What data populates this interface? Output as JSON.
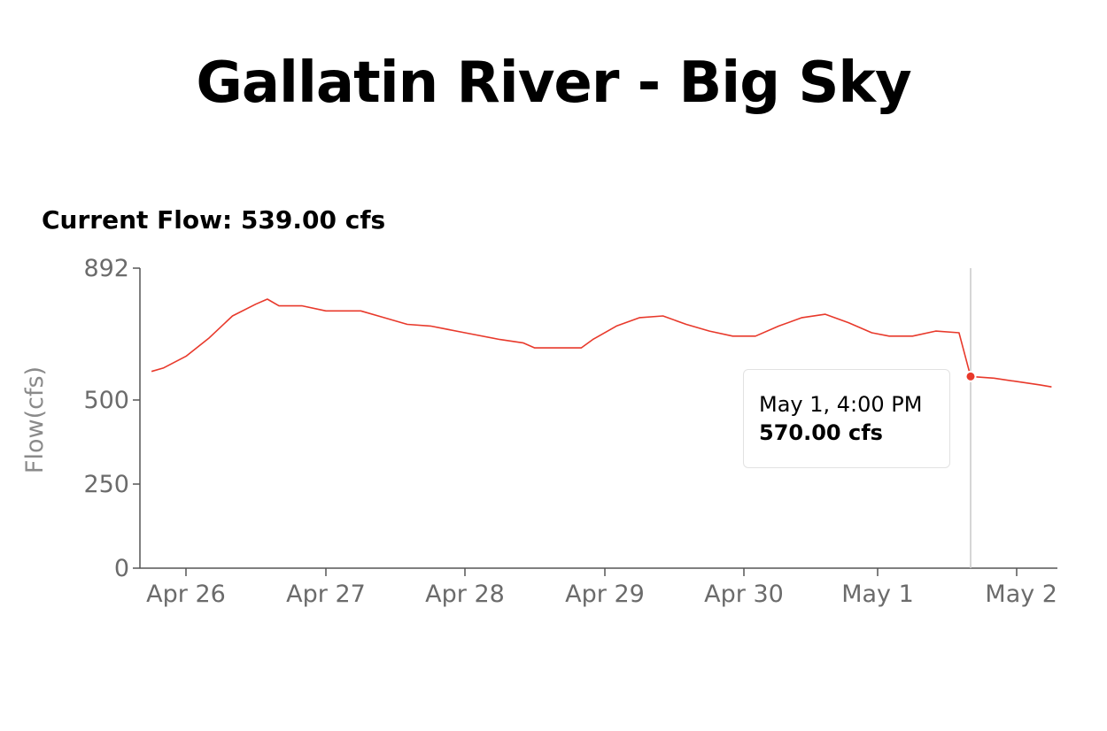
{
  "page": {
    "title": "Gallatin River - Big Sky",
    "current_flow": "Current Flow: 539.00 cfs"
  },
  "tooltip": {
    "time": "May 1, 4:00 PM",
    "value": "570.00 cfs"
  },
  "colors": {
    "line": "#e8392b",
    "axis": "#555555",
    "hover_line": "#c8c8c8"
  },
  "chart_data": {
    "type": "line",
    "title": "",
    "xlabel": "",
    "ylabel": "Flow(cfs)",
    "ylim": [
      0,
      892
    ],
    "yticks": [
      0,
      250,
      500,
      892
    ],
    "xticks": [
      "Apr 26",
      "Apr 27",
      "Apr 28",
      "Apr 29",
      "Apr 30",
      "May 1",
      "May 2"
    ],
    "grid": false,
    "hover": {
      "x": "May 1, 4:00 PM",
      "y": 570
    },
    "series": [
      {
        "values": [
          {
            "x": "Apr 25, 18:00",
            "y": 585
          },
          {
            "x": "Apr 25, 20:00",
            "y": 595
          },
          {
            "x": "Apr 26, 00:00",
            "y": 630
          },
          {
            "x": "Apr 26, 04:00",
            "y": 685
          },
          {
            "x": "Apr 26, 08:00",
            "y": 750
          },
          {
            "x": "Apr 26, 12:00",
            "y": 785
          },
          {
            "x": "Apr 26, 14:00",
            "y": 800
          },
          {
            "x": "Apr 26, 16:00",
            "y": 780
          },
          {
            "x": "Apr 26, 20:00",
            "y": 780
          },
          {
            "x": "Apr 27, 00:00",
            "y": 765
          },
          {
            "x": "Apr 27, 06:00",
            "y": 765
          },
          {
            "x": "Apr 27, 10:00",
            "y": 745
          },
          {
            "x": "Apr 27, 14:00",
            "y": 725
          },
          {
            "x": "Apr 27, 18:00",
            "y": 720
          },
          {
            "x": "Apr 28, 00:00",
            "y": 700
          },
          {
            "x": "Apr 28, 06:00",
            "y": 680
          },
          {
            "x": "Apr 28, 10:00",
            "y": 670
          },
          {
            "x": "Apr 28, 12:00",
            "y": 655
          },
          {
            "x": "Apr 28, 20:00",
            "y": 655
          },
          {
            "x": "Apr 28, 22:00",
            "y": 680
          },
          {
            "x": "Apr 29, 02:00",
            "y": 720
          },
          {
            "x": "Apr 29, 06:00",
            "y": 745
          },
          {
            "x": "Apr 29, 10:00",
            "y": 750
          },
          {
            "x": "Apr 29, 14:00",
            "y": 725
          },
          {
            "x": "Apr 29, 18:00",
            "y": 705
          },
          {
            "x": "Apr 29, 22:00",
            "y": 690
          },
          {
            "x": "Apr 30, 02:00",
            "y": 690
          },
          {
            "x": "Apr 30, 06:00",
            "y": 720
          },
          {
            "x": "Apr 30, 10:00",
            "y": 745
          },
          {
            "x": "Apr 30, 14:00",
            "y": 755
          },
          {
            "x": "Apr 30, 18:00",
            "y": 730
          },
          {
            "x": "Apr 30, 22:00",
            "y": 700
          },
          {
            "x": "May 1, 02:00",
            "y": 690
          },
          {
            "x": "May 1, 06:00",
            "y": 690
          },
          {
            "x": "May 1, 10:00",
            "y": 705
          },
          {
            "x": "May 1, 14:00",
            "y": 700
          },
          {
            "x": "May 1, 16:00",
            "y": 570
          },
          {
            "x": "May 1, 20:00",
            "y": 565
          },
          {
            "x": "May 2, 00:00",
            "y": 555
          },
          {
            "x": "May 2, 04:00",
            "y": 545
          },
          {
            "x": "May 2, 06:00",
            "y": 539
          }
        ]
      }
    ]
  }
}
